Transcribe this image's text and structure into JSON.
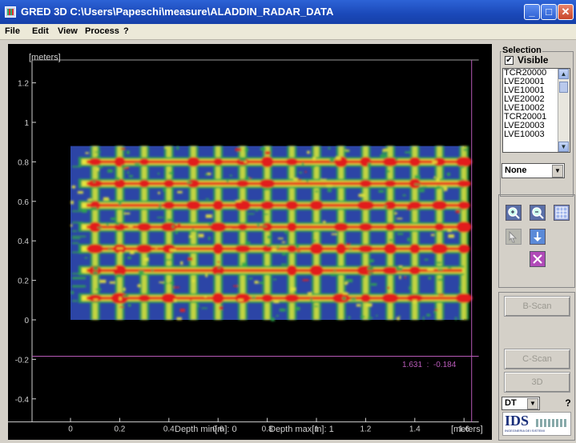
{
  "window": {
    "title": "GRED 3D C:\\Users\\Papeschi\\measure\\ALADDIN_RADAR_DATA",
    "buttons": [
      "minimize-icon",
      "maximize-icon",
      "close-icon"
    ]
  },
  "menu": [
    "File",
    "Edit",
    "View",
    "Process",
    "?"
  ],
  "plot": {
    "y_unit": "[meters]",
    "x_unit": "[meters]",
    "y_ticks": [
      "1.2",
      "1",
      "0.8",
      "0.6",
      "0.4",
      "0.2",
      "0",
      "-0.2",
      "-0.4"
    ],
    "x_ticks": [
      "0",
      "0.2",
      "0.4",
      "0.6",
      "0.8",
      "1",
      "1.2",
      "1.4",
      "1.6"
    ],
    "depth_min": "Depth min[m]: 0",
    "depth_max": "Depth max[m]: 1",
    "cursor_readout": "1.631  :  -0.184",
    "cursor_x": 1.631,
    "cursor_y": -0.184,
    "colors": {
      "background": "#000000",
      "low": "#2c45a6",
      "mid": "#2ea84a",
      "high": "#e8e43c",
      "peak": "#e21c1c",
      "cursor": "#b85ab8"
    }
  },
  "chart_data": {
    "type": "heatmap",
    "xlim": [
      -0.28,
      1.66
    ],
    "ylim": [
      -0.46,
      1.36
    ],
    "data_extent": {
      "x": [
        0,
        1.6
      ],
      "y": [
        0,
        0.88
      ]
    },
    "horizontal_bars_y": [
      0.11,
      0.25,
      0.36,
      0.47,
      0.58,
      0.69,
      0.8
    ],
    "vertical_bars_x": [
      0.1,
      0.2,
      0.3,
      0.4,
      0.5,
      0.6,
      0.7,
      0.8,
      0.9,
      1.0,
      1.1,
      1.2,
      1.3,
      1.4,
      1.5,
      1.6
    ],
    "grid": false
  },
  "sidebar": {
    "selection_title": "Selection",
    "visible_label": "Visible",
    "visible_checked": "✔",
    "list_items": [
      "TCR20000",
      "LVE20001",
      "LVE10001",
      "LVE20002",
      "LVE10002",
      "TCR20001",
      "LVE20003",
      "LVE10003"
    ],
    "filter_value": "None",
    "tools": [
      "zoom-in-icon",
      "zoom-out-icon",
      "grid-view-icon",
      "pointer-icon",
      "download-icon",
      "delete-icon"
    ],
    "bscan_label": "B-Scan",
    "cscan_label": "C-Scan",
    "threed_label": "3D",
    "mode_value": "DT",
    "help_label": "?",
    "logo_text": "IDS",
    "logo_sub": "INGEGNERIA DEI SISTEMI"
  }
}
